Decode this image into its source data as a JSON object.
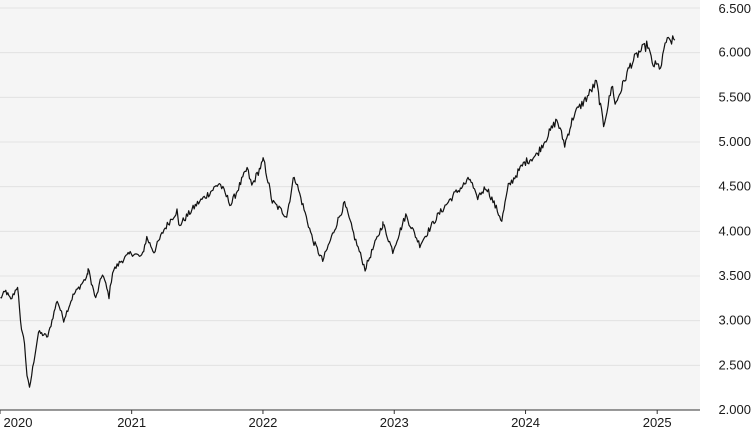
{
  "chart_data": {
    "type": "line",
    "title": "",
    "xlabel": "",
    "ylabel": "",
    "x_tick_labels": [
      "2020",
      "2021",
      "2022",
      "2023",
      "2024",
      "2025"
    ],
    "y_tick_labels": [
      "2.000",
      "2.500",
      "3.000",
      "3.500",
      "4.000",
      "4.500",
      "5.000",
      "5.500",
      "6.000",
      "6.500"
    ],
    "ylim": [
      2000,
      6500
    ],
    "xlim": [
      "2020-01-01",
      "2025-04-30"
    ],
    "grid": "horizontal",
    "y_axis_side": "right",
    "colors": {
      "background": "#f5f5f5",
      "line": "#111111",
      "grid": "#ffffff",
      "axis": "#333333"
    },
    "series": [
      {
        "values": [
          [
            "2020-01-02",
            3250
          ],
          [
            "2020-01-17",
            3330
          ],
          [
            "2020-01-31",
            3230
          ],
          [
            "2020-02-19",
            3390
          ],
          [
            "2020-02-27",
            2980
          ],
          [
            "2020-03-09",
            2750
          ],
          [
            "2020-03-16",
            2390
          ],
          [
            "2020-03-23",
            2240
          ],
          [
            "2020-04-01",
            2470
          ],
          [
            "2020-04-17",
            2870
          ],
          [
            "2020-05-13",
            2820
          ],
          [
            "2020-06-08",
            3230
          ],
          [
            "2020-06-26",
            3010
          ],
          [
            "2020-07-22",
            3280
          ],
          [
            "2020-08-31",
            3500
          ],
          [
            "2020-09-02",
            3580
          ],
          [
            "2020-09-23",
            3240
          ],
          [
            "2020-10-12",
            3530
          ],
          [
            "2020-10-30",
            3270
          ],
          [
            "2020-11-09",
            3550
          ],
          [
            "2020-12-01",
            3660
          ],
          [
            "2020-12-31",
            3760
          ],
          [
            "2021-01-29",
            3710
          ],
          [
            "2021-02-12",
            3930
          ],
          [
            "2021-03-04",
            3770
          ],
          [
            "2021-04-01",
            4020
          ],
          [
            "2021-05-07",
            4230
          ],
          [
            "2021-05-12",
            4060
          ],
          [
            "2021-06-30",
            4300
          ],
          [
            "2021-07-28",
            4400
          ],
          [
            "2021-09-02",
            4540
          ],
          [
            "2021-10-04",
            4300
          ],
          [
            "2021-11-18",
            4700
          ],
          [
            "2021-12-01",
            4510
          ],
          [
            "2021-12-31",
            4770
          ],
          [
            "2022-01-03",
            4800
          ],
          [
            "2022-01-27",
            4330
          ],
          [
            "2022-02-24",
            4220
          ],
          [
            "2022-03-08",
            4170
          ],
          [
            "2022-03-29",
            4630
          ],
          [
            "2022-05-20",
            3900
          ],
          [
            "2022-06-16",
            3670
          ],
          [
            "2022-07-29",
            4130
          ],
          [
            "2022-08-16",
            4310
          ],
          [
            "2022-09-13",
            3930
          ],
          [
            "2022-10-12",
            3580
          ],
          [
            "2022-11-30",
            4080
          ],
          [
            "2022-12-01",
            4080
          ],
          [
            "2022-12-28",
            3780
          ],
          [
            "2023-02-02",
            4180
          ],
          [
            "2023-03-13",
            3850
          ],
          [
            "2023-05-01",
            4170
          ],
          [
            "2023-06-16",
            4410
          ],
          [
            "2023-07-31",
            4590
          ],
          [
            "2023-08-18",
            4370
          ],
          [
            "2023-09-14",
            4500
          ],
          [
            "2023-10-27",
            4120
          ],
          [
            "2023-11-14",
            4500
          ],
          [
            "2023-12-29",
            4770
          ],
          [
            "2024-01-31",
            4850
          ],
          [
            "2024-03-28",
            5250
          ],
          [
            "2024-04-19",
            4970
          ],
          [
            "2024-05-15",
            5310
          ],
          [
            "2024-06-18",
            5490
          ],
          [
            "2024-07-16",
            5670
          ],
          [
            "2024-08-05",
            5190
          ],
          [
            "2024-08-30",
            5650
          ],
          [
            "2024-09-06",
            5410
          ],
          [
            "2024-10-18",
            5860
          ],
          [
            "2024-11-11",
            6000
          ],
          [
            "2024-12-06",
            6090
          ],
          [
            "2024-12-18",
            5870
          ],
          [
            "2025-01-13",
            5840
          ],
          [
            "2025-01-23",
            6120
          ],
          [
            "2025-02-19",
            6140
          ]
        ]
      }
    ]
  }
}
